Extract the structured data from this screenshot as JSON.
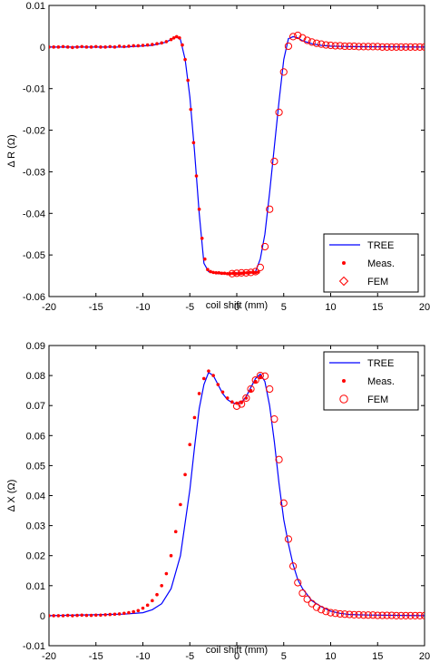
{
  "chart_data": [
    {
      "type": "line",
      "xlabel": "coil shift (mm)",
      "ylabel": "Δ R (Ω)",
      "xlim": [
        -20,
        20
      ],
      "ylim": [
        -0.06,
        0.01
      ],
      "xticks": [
        -20,
        -15,
        -10,
        -5,
        0,
        5,
        10,
        15,
        20
      ],
      "xtick_labels": [
        "-20",
        "-15",
        "-10",
        "-5",
        "0",
        "5",
        "10",
        "15",
        "20"
      ],
      "yticks": [
        -0.06,
        -0.05,
        -0.04,
        -0.03,
        -0.02,
        -0.01,
        0,
        0.01
      ],
      "ytick_labels": [
        "-0.06",
        "-0.05",
        "-0.04",
        "-0.03",
        "-0.02",
        "-0.01",
        "0",
        "0.01"
      ],
      "grid": false,
      "legend_position": "bottom-right",
      "colors": {
        "tree": "#0000ff",
        "meas": "#ff0000",
        "fem": "#ff0000"
      },
      "series": [
        {
          "name": "TREE",
          "style": "line",
          "x": [
            -20,
            -12,
            -9,
            -7.5,
            -6.5,
            -6.0,
            -5.5,
            -5.0,
            -4.5,
            -4.0,
            -3.5,
            -3.0,
            -2.0,
            -1.0,
            0,
            1.0,
            2.0,
            2.5,
            3.0,
            3.5,
            4.0,
            4.5,
            5.0,
            5.5,
            6.0,
            6.5,
            7.0,
            8.0,
            9.0,
            10.0,
            12.0,
            20.0
          ],
          "y": [
            0,
            0,
            0.0004,
            0.0012,
            0.0025,
            0.0018,
            -0.003,
            -0.012,
            -0.025,
            -0.04,
            -0.052,
            -0.054,
            -0.0545,
            -0.0545,
            -0.0543,
            -0.0543,
            -0.054,
            -0.051,
            -0.045,
            -0.035,
            -0.024,
            -0.013,
            -0.003,
            0.002,
            0.0025,
            0.0022,
            0.0015,
            0.0008,
            0.0004,
            0.0002,
            0.0001,
            0
          ]
        },
        {
          "name": "Meas.",
          "style": "dots",
          "x": [
            -20,
            -19.5,
            -19,
            -18.5,
            -18,
            -17.5,
            -17,
            -16.5,
            -16,
            -15.5,
            -15,
            -14.5,
            -14,
            -13.5,
            -13,
            -12.5,
            -12,
            -11.5,
            -11,
            -10.5,
            -10,
            -9.5,
            -9,
            -8.5,
            -8,
            -7.5,
            -7,
            -6.7,
            -6.4,
            -6.1,
            -5.8,
            -5.5,
            -5.2,
            -4.9,
            -4.6,
            -4.3,
            -4.0,
            -3.7,
            -3.4,
            -3.1,
            -2.8,
            -2.5,
            -2.2,
            -1.9,
            -1.6,
            -1.3,
            -1.0,
            -0.7,
            -0.4,
            -0.1,
            0.2,
            0.5,
            0.8,
            1.1,
            1.4,
            1.7,
            2.0,
            2.3
          ],
          "y": [
            0,
            0,
            0,
            0.0001,
            0,
            -0.0001,
            0,
            0.0001,
            0,
            0,
            0.0001,
            0,
            0,
            0.0001,
            0,
            0.0002,
            0.0001,
            0.0002,
            0.0003,
            0.0003,
            0.0004,
            0.0005,
            0.0006,
            0.0008,
            0.001,
            0.0013,
            0.0018,
            0.0022,
            0.0025,
            0.0022,
            0.0005,
            -0.003,
            -0.008,
            -0.015,
            -0.023,
            -0.031,
            -0.039,
            -0.046,
            -0.051,
            -0.0535,
            -0.054,
            -0.0542,
            -0.0543,
            -0.0543,
            -0.0544,
            -0.0544,
            -0.0545,
            -0.0545,
            -0.0544,
            -0.0545,
            -0.0545,
            -0.0544,
            -0.0543,
            -0.0543,
            -0.0542,
            -0.0542,
            -0.0542,
            -0.0541
          ]
        },
        {
          "name": "FEM",
          "style": "circles",
          "x": [
            -0.5,
            0,
            0.5,
            1.0,
            1.5,
            2.0,
            2.5,
            3.0,
            3.5,
            4.0,
            4.5,
            5.0,
            5.5,
            6.0,
            6.5,
            7.0,
            7.5,
            8.0,
            8.5,
            9.0,
            9.5,
            10.0,
            10.5,
            11.0,
            11.5,
            12.0,
            12.5,
            13.0,
            13.5,
            14.0,
            14.5,
            15.0,
            15.5,
            16.0,
            16.5,
            17.0,
            17.5,
            18.0,
            18.5,
            19.0,
            19.5,
            20.0
          ],
          "y": [
            -0.0545,
            -0.0544,
            -0.0543,
            -0.0543,
            -0.0542,
            -0.054,
            -0.053,
            -0.048,
            -0.039,
            -0.0275,
            -0.0157,
            -0.006,
            0.0002,
            0.0025,
            0.0028,
            0.0022,
            0.0016,
            0.0012,
            0.0009,
            0.0007,
            0.0005,
            0.0004,
            0.0003,
            0.0003,
            0.0002,
            0.0002,
            0.0002,
            0.0001,
            0.0001,
            0.0001,
            0.0001,
            0.0001,
            0,
            0,
            0,
            0,
            0,
            0,
            0,
            0,
            0,
            0
          ]
        }
      ],
      "legend_markers": [
        "line",
        "dot",
        "diamond"
      ]
    },
    {
      "type": "line",
      "xlabel": "coil shift (mm)",
      "ylabel": "Δ X (Ω)",
      "xlim": [
        -20,
        20
      ],
      "ylim": [
        -0.01,
        0.09
      ],
      "xticks": [
        -20,
        -15,
        -10,
        -5,
        0,
        5,
        10,
        15,
        20
      ],
      "xtick_labels": [
        "-20",
        "-15",
        "-10",
        "-5",
        "0",
        "5",
        "10",
        "15",
        "20"
      ],
      "yticks": [
        -0.01,
        0,
        0.01,
        0.02,
        0.03,
        0.04,
        0.05,
        0.06,
        0.07,
        0.08,
        0.09
      ],
      "ytick_labels": [
        "-0.01",
        "0",
        "0.01",
        "0.02",
        "0.03",
        "0.04",
        "0.05",
        "0.06",
        "0.07",
        "0.08",
        "0.09"
      ],
      "grid": false,
      "legend_position": "top-right",
      "colors": {
        "tree": "#0000ff",
        "meas": "#ff0000",
        "fem": "#ff0000"
      },
      "series": [
        {
          "name": "TREE",
          "style": "line",
          "x": [
            -20,
            -12,
            -10,
            -9,
            -8,
            -7,
            -6,
            -5,
            -4.5,
            -4,
            -3.5,
            -3,
            -2.5,
            -2,
            -1.5,
            -1,
            -0.5,
            0,
            0.5,
            1,
            1.5,
            2,
            2.5,
            3,
            3.5,
            4,
            4.5,
            5,
            5.5,
            6,
            6.5,
            7,
            8,
            9,
            10,
            11,
            12,
            14,
            20
          ],
          "y": [
            0,
            0.0005,
            0.001,
            0.002,
            0.004,
            0.009,
            0.02,
            0.042,
            0.056,
            0.069,
            0.077,
            0.081,
            0.08,
            0.077,
            0.074,
            0.072,
            0.071,
            0.0705,
            0.071,
            0.073,
            0.076,
            0.079,
            0.0805,
            0.078,
            0.07,
            0.058,
            0.044,
            0.032,
            0.024,
            0.017,
            0.012,
            0.009,
            0.005,
            0.003,
            0.0015,
            0.0008,
            0.0004,
            0.0002,
            0
          ]
        },
        {
          "name": "Meas.",
          "style": "dots",
          "x": [
            -20,
            -19.5,
            -19,
            -18.5,
            -18,
            -17.5,
            -17,
            -16.5,
            -16,
            -15.5,
            -15,
            -14.5,
            -14,
            -13.5,
            -13,
            -12.5,
            -12,
            -11.5,
            -11,
            -10.5,
            -10,
            -9.5,
            -9,
            -8.5,
            -8,
            -7.5,
            -7,
            -6.5,
            -6,
            -5.5,
            -5,
            -4.5,
            -4,
            -3.5,
            -3.0,
            -2.5,
            -2.0,
            -1.5,
            -1.0,
            -0.5,
            0,
            0.5,
            1.0,
            1.5,
            2.0,
            2.5
          ],
          "y": [
            0,
            0,
            0,
            0,
            0.0001,
            0,
            0.0001,
            0.0002,
            0.0001,
            0.0001,
            0.0002,
            0.0002,
            0.0003,
            0.0004,
            0.0005,
            0.0006,
            0.0008,
            0.001,
            0.0013,
            0.0017,
            0.0025,
            0.0035,
            0.005,
            0.007,
            0.01,
            0.014,
            0.02,
            0.028,
            0.037,
            0.047,
            0.057,
            0.066,
            0.074,
            0.079,
            0.0815,
            0.08,
            0.077,
            0.0745,
            0.0725,
            0.0712,
            0.0708,
            0.071,
            0.0725,
            0.075,
            0.078,
            0.0795
          ]
        },
        {
          "name": "FEM",
          "style": "circles",
          "x": [
            0,
            0.5,
            1.0,
            1.5,
            2.0,
            2.5,
            3.0,
            3.5,
            4.0,
            4.5,
            5.0,
            5.5,
            6.0,
            6.5,
            7.0,
            7.5,
            8.0,
            8.5,
            9.0,
            9.5,
            10.0,
            10.5,
            11.0,
            11.5,
            12.0,
            12.5,
            13.0,
            13.5,
            14.0,
            14.5,
            15.0,
            15.5,
            16.0,
            16.5,
            17.0,
            17.5,
            18.0,
            18.5,
            19.0,
            19.5,
            20.0
          ],
          "y": [
            0.0698,
            0.0705,
            0.0725,
            0.0755,
            0.0785,
            0.08,
            0.0798,
            0.0755,
            0.0655,
            0.052,
            0.0375,
            0.0255,
            0.0165,
            0.011,
            0.0075,
            0.0055,
            0.004,
            0.0028,
            0.002,
            0.0014,
            0.001,
            0.0008,
            0.0006,
            0.0005,
            0.0004,
            0.0003,
            0.0003,
            0.0002,
            0.0002,
            0.0002,
            0.0001,
            0.0001,
            0.0001,
            0.0001,
            0,
            0,
            0,
            0,
            0,
            0,
            0
          ]
        }
      ],
      "legend_markers": [
        "line",
        "dot",
        "circle"
      ]
    }
  ]
}
